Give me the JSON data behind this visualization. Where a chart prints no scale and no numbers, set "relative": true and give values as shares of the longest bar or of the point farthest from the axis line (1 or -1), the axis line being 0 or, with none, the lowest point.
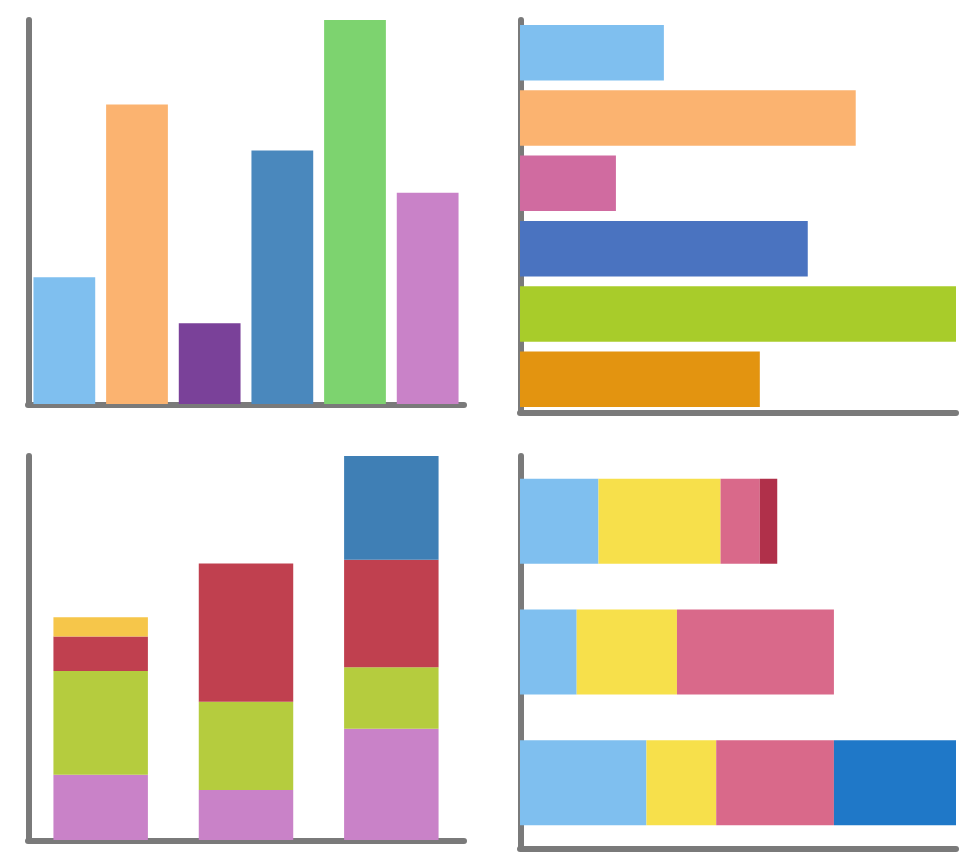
{
  "chart_data": [
    {
      "type": "bar",
      "relative": true,
      "categories": [
        null,
        null,
        null,
        null,
        null,
        null
      ],
      "values": [
        0.33,
        0.78,
        0.21,
        0.66,
        1,
        0.55
      ],
      "colors": [
        "#7fbfef",
        "#fbb370",
        "#7a4199",
        "#4a88bd",
        "#7dd36f",
        "#c982c8"
      ]
    },
    {
      "type": "bar",
      "relative": true,
      "orientation": "horizontal",
      "categories": [
        null,
        null,
        null,
        null,
        null,
        null
      ],
      "values": [
        0.33,
        0.77,
        0.22,
        0.66,
        1,
        0.55
      ],
      "colors": [
        "#7fbfef",
        "#fbb370",
        "#d06ba0",
        "#4a73c0",
        "#a8cc2a",
        "#e39410"
      ]
    },
    {
      "type": "bar",
      "relative": true,
      "stacked": true,
      "categories": [
        null,
        null,
        null
      ],
      "series": [
        {
          "color": "#c982c8",
          "values": [
            0.17,
            0.13,
            0.29
          ]
        },
        {
          "color": "#b5cc3e",
          "values": [
            0.27,
            0.23,
            0.16
          ]
        },
        {
          "color": "#c0404f",
          "values": [
            0.09,
            0.36,
            0.28
          ]
        },
        {
          "colors": [
            "#f6c64a",
            null,
            "#3f7fb5"
          ],
          "values": [
            0.05,
            null,
            0.27
          ]
        }
      ]
    },
    {
      "type": "bar",
      "relative": true,
      "stacked": true,
      "orientation": "horizontal",
      "categories": [
        null,
        null,
        null
      ],
      "series": [
        {
          "color": "#7fbfef",
          "values": [
            0.18,
            0.13,
            0.29
          ]
        },
        {
          "color": "#f7e04b",
          "values": [
            0.28,
            0.23,
            0.16
          ]
        },
        {
          "color": "#d9698a",
          "values": [
            0.09,
            0.36,
            0.27
          ]
        },
        {
          "colors": [
            "#b0304a",
            null,
            "#1f78c8"
          ],
          "values": [
            0.04,
            null,
            0.28
          ]
        }
      ]
    }
  ]
}
